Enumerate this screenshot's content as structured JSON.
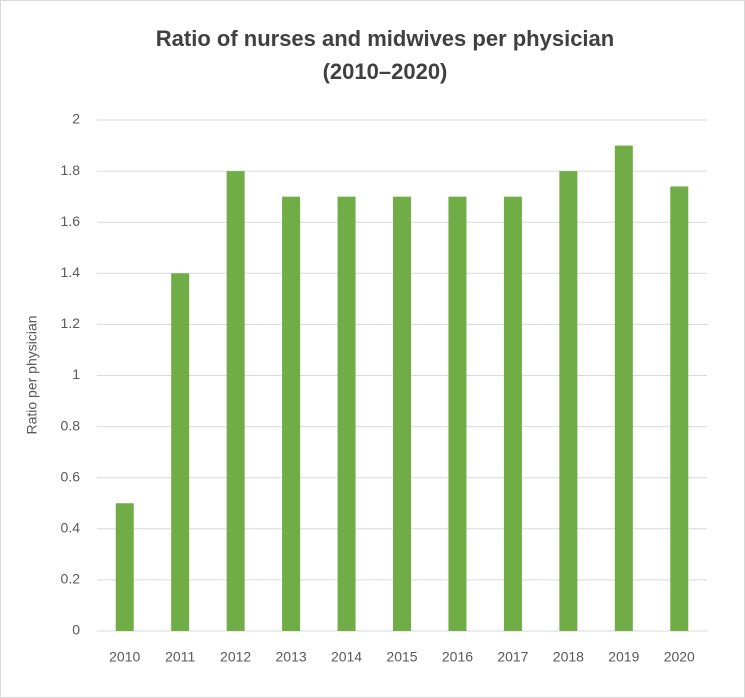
{
  "chart_data": {
    "type": "bar",
    "title": [
      "Ratio of nurses and midwives per physician",
      "(2010–2020)"
    ],
    "y_label": "Ratio per physician",
    "categories": [
      "2010",
      "2011",
      "2012",
      "2013",
      "2014",
      "2015",
      "2016",
      "2017",
      "2018",
      "2019",
      "2020"
    ],
    "values": [
      0.5,
      1.4,
      1.8,
      1.7,
      1.7,
      1.7,
      1.7,
      1.7,
      1.8,
      1.9,
      1.74
    ],
    "color": "#70ad47",
    "ylim": [
      0,
      2
    ],
    "yticks": [
      0,
      0.2,
      0.4,
      0.6,
      0.8,
      1,
      1.2,
      1.4,
      1.6,
      1.8,
      2
    ],
    "grid": true
  }
}
